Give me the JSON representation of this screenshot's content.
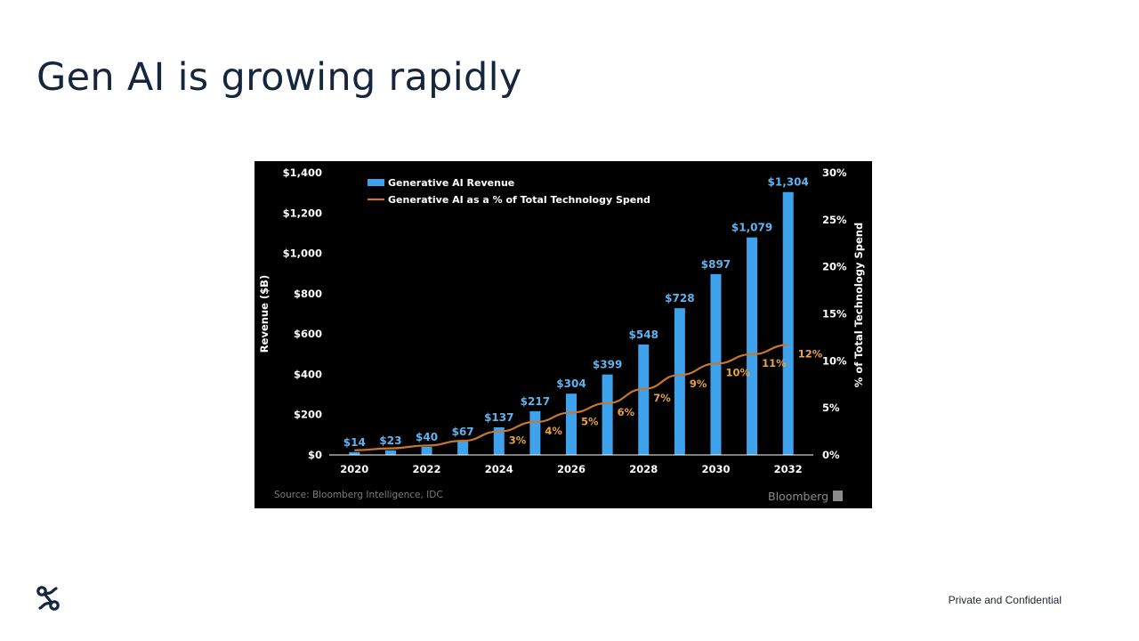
{
  "slide": {
    "title": "Gen AI is growing rapidly",
    "footer": "Private and Confidential",
    "logo_icon": "link-knot-icon"
  },
  "colors": {
    "bar": "#3fa2ec",
    "bar_label": "#5fb3f0",
    "line": "#c9762f",
    "line_label": "#e8a33a",
    "axis_text": "#ffffff",
    "source_text": "#7a7a7a",
    "title": "#16263c"
  },
  "chart_data": {
    "type": "bar",
    "x": [
      2020,
      2021,
      2022,
      2023,
      2024,
      2025,
      2026,
      2027,
      2028,
      2029,
      2030,
      2031,
      2032
    ],
    "x_tick_labels": [
      "2020",
      "2022",
      "2024",
      "2026",
      "2028",
      "2030",
      "2032"
    ],
    "series": [
      {
        "name": "Generative AI Revenue",
        "type": "bar",
        "axis": "left",
        "values": [
          14,
          23,
          40,
          67,
          137,
          217,
          304,
          399,
          548,
          728,
          897,
          1079,
          1304
        ],
        "labels": [
          "$14",
          "$23",
          "$40",
          "$67",
          "$137",
          "$217",
          "$304",
          "$399",
          "$548",
          "$728",
          "$897",
          "$1,079",
          "$1,304"
        ]
      },
      {
        "name": "Generative AI as a % of Total Technology Spend",
        "type": "line",
        "axis": "right",
        "values": [
          0.5,
          0.7,
          1,
          1.5,
          2.5,
          3.5,
          4.5,
          5.5,
          7,
          8.5,
          9.7,
          10.7,
          11.7
        ],
        "labels": [
          "",
          "",
          "",
          "",
          "3%",
          "4%",
          "5%",
          "6%",
          "7%",
          "9%",
          "10%",
          "11%",
          "12%"
        ]
      }
    ],
    "ylabel": "Revenue ($B)",
    "ylim": [
      0,
      1400
    ],
    "y_ticks": [
      0,
      200,
      400,
      600,
      800,
      1000,
      1200,
      1400
    ],
    "y_tick_labels": [
      "$0",
      "$200",
      "$400",
      "$600",
      "$800",
      "$1,000",
      "$1,200",
      "$1,400"
    ],
    "y2label": "% of Total Technology Spend",
    "y2lim": [
      0,
      30
    ],
    "y2_ticks": [
      0,
      5,
      10,
      15,
      20,
      25,
      30
    ],
    "y2_tick_labels": [
      "0%",
      "5%",
      "10%",
      "15%",
      "20%",
      "25%",
      "30%"
    ],
    "legend": "top-left",
    "grid": false,
    "source": "Source: Bloomberg Intelligence, IDC",
    "brand": "Bloomberg"
  }
}
